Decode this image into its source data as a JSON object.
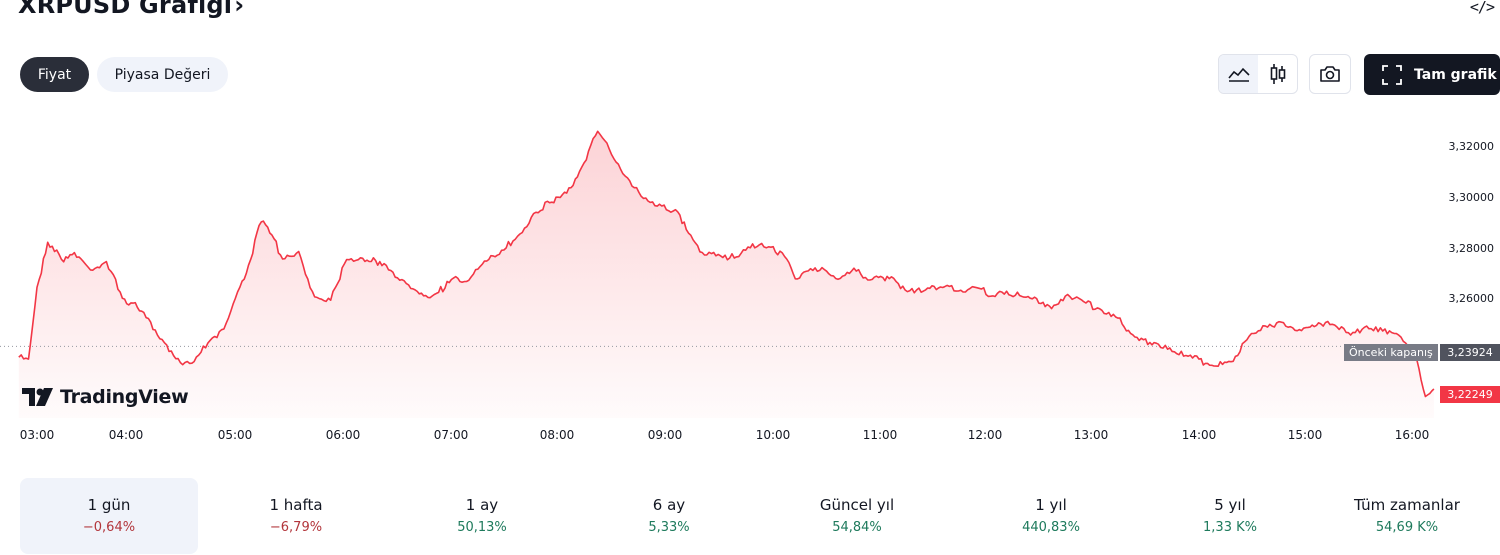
{
  "header": {
    "title": "XRPUSD Grafiği",
    "chevron": "›",
    "embed_icon": "</>"
  },
  "toggles": [
    {
      "label": "Fiyat",
      "active": true
    },
    {
      "label": "Piyasa Değeri",
      "active": false
    }
  ],
  "toolbar": {
    "icons": [
      "area-chart-icon",
      "candlestick-icon",
      "camera-icon",
      "fullscreen-icon"
    ],
    "fullscreen_label": "Tam grafik"
  },
  "brand": "TradingView",
  "chart_data": {
    "type": "area",
    "symbol": "XRPUSD",
    "x_ticks": [
      "03:00",
      "04:00",
      "05:00",
      "06:00",
      "07:00",
      "08:00",
      "09:00",
      "10:00",
      "11:00",
      "12:00",
      "13:00",
      "14:00",
      "15:00",
      "16:00"
    ],
    "y_ticks": [
      "3,26000",
      "3,28000",
      "3,30000",
      "3,32000"
    ],
    "ylim": [
      3.215,
      3.335
    ],
    "previous_close": {
      "label": "Önceki kapanış",
      "value": "3,23924",
      "numeric": 3.23924
    },
    "last_price": {
      "value": "3,22249",
      "numeric": 3.22249
    },
    "line_color": "#f23645",
    "series": [
      {
        "x": [
          2.83,
          2.92,
          3.0,
          3.1,
          3.25,
          3.35,
          3.5,
          3.65,
          3.8,
          3.9,
          4.0,
          4.15,
          4.3,
          4.45,
          4.6,
          4.75,
          4.9,
          5.0,
          5.1,
          5.2,
          5.3,
          5.45,
          5.6,
          5.75,
          5.9,
          6.05,
          6.25,
          6.5,
          6.7,
          6.9,
          7.0,
          7.15,
          7.35,
          7.5,
          7.65,
          7.8,
          7.9,
          8.0,
          8.1,
          8.25,
          8.4,
          8.55,
          8.7,
          8.85,
          9.0,
          9.1,
          9.25,
          9.4,
          9.55,
          9.7,
          9.85,
          10.0,
          10.1,
          10.2,
          10.35,
          10.5,
          10.65,
          10.8,
          11.0,
          11.15,
          11.3,
          11.5,
          11.65,
          11.8,
          11.95,
          12.1,
          12.3,
          12.5,
          12.65,
          12.8,
          12.95,
          13.1,
          13.3,
          13.5,
          13.65,
          13.8,
          14.0,
          14.2,
          14.35,
          14.5,
          14.65,
          14.8,
          15.0,
          15.15,
          15.3,
          15.45,
          15.6,
          15.75,
          15.9,
          16.0,
          16.08
        ],
        "y": [
          3.2355,
          3.2343,
          3.262,
          3.2803,
          3.273,
          3.276,
          3.2693,
          3.2725,
          3.2583,
          3.256,
          3.2523,
          3.2425,
          3.2346,
          3.2325,
          3.241,
          3.2461,
          3.2625,
          3.2735,
          3.2888,
          3.2834,
          3.2732,
          3.276,
          3.2586,
          3.258,
          3.2738,
          3.2736,
          3.2714,
          3.2622,
          3.2587,
          3.2658,
          3.2646,
          3.2706,
          3.2765,
          3.2824,
          3.2913,
          3.2962,
          3.2982,
          3.3018,
          3.3093,
          3.3241,
          3.3136,
          3.3042,
          3.2971,
          3.2946,
          3.2921,
          3.2836,
          3.2754,
          3.2747,
          3.2745,
          3.2792,
          3.2785,
          3.275,
          3.2661,
          3.2683,
          3.27,
          3.2662,
          3.2698,
          3.2657,
          3.2662,
          3.2606,
          3.2611,
          3.263,
          3.2612,
          3.2622,
          3.259,
          3.2601,
          3.2584,
          3.2543,
          3.2597,
          3.257,
          3.2536,
          3.2511,
          3.2424,
          3.2398,
          3.2367,
          3.2356,
          3.232,
          3.2329,
          3.2438,
          3.2473,
          3.2488,
          3.2452,
          3.248,
          3.2481,
          3.2443,
          3.2471,
          3.2454,
          3.2437,
          3.2376,
          3.2196,
          3.2225
        ]
      }
    ]
  },
  "periods": [
    {
      "label": "1 gün",
      "value": "−0,64%",
      "trend": "neg",
      "active": true
    },
    {
      "label": "1 hafta",
      "value": "−6,79%",
      "trend": "neg",
      "active": false
    },
    {
      "label": "1 ay",
      "value": "50,13%",
      "trend": "pos",
      "active": false
    },
    {
      "label": "6 ay",
      "value": "5,33%",
      "trend": "pos",
      "active": false
    },
    {
      "label": "Güncel yıl",
      "value": "54,84%",
      "trend": "pos",
      "active": false
    },
    {
      "label": "1 yıl",
      "value": "440,83%",
      "trend": "pos",
      "active": false
    },
    {
      "label": "5 yıl",
      "value": "1,33 K%",
      "trend": "pos",
      "active": false
    },
    {
      "label": "Tüm zamanlar",
      "value": "54,69 K%",
      "trend": "pos",
      "active": false
    }
  ]
}
